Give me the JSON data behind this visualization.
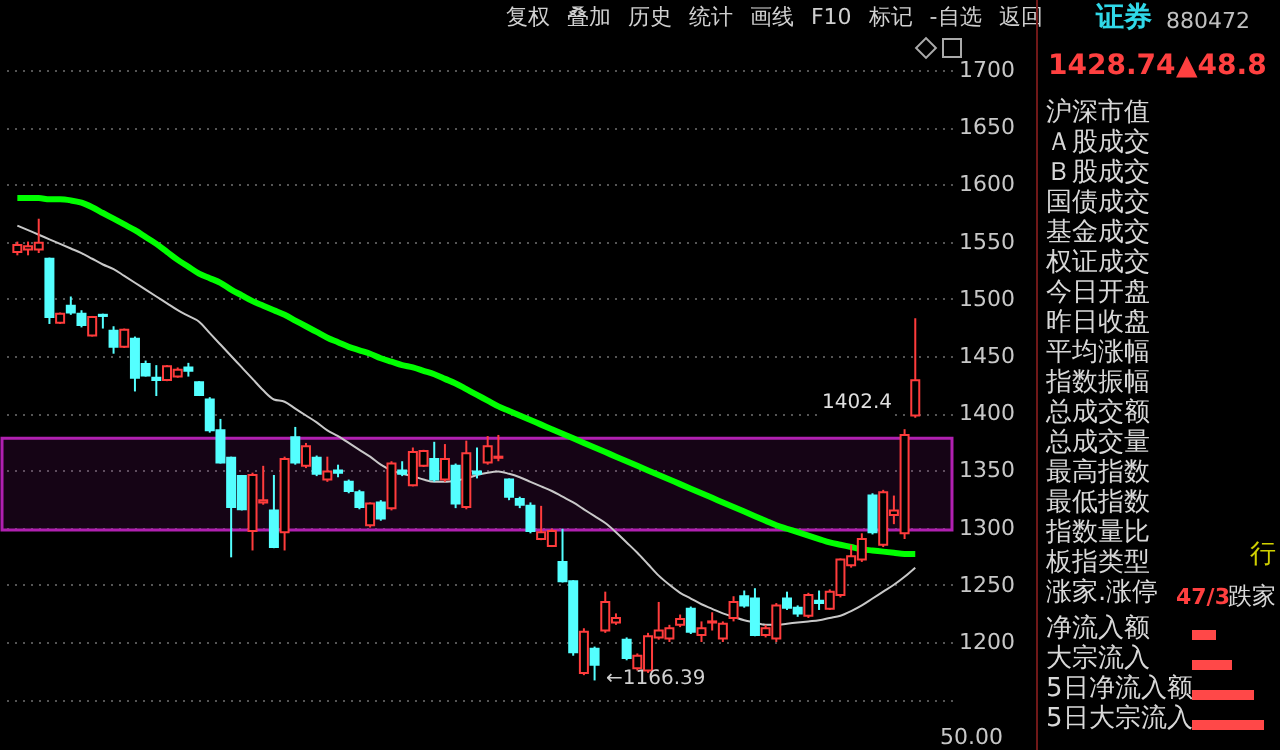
{
  "chart_data": {
    "type": "candlestick",
    "categories": [
      null,
      null,
      null,
      null,
      null,
      null,
      null,
      null,
      null,
      null,
      null,
      null,
      null,
      null,
      null,
      null,
      null,
      null,
      null,
      null,
      null,
      null,
      null,
      null,
      null,
      null,
      null,
      null,
      null,
      null,
      null,
      null,
      null,
      null,
      null,
      null,
      null,
      null,
      null,
      null,
      null,
      null,
      null,
      null,
      null,
      null,
      null,
      null,
      null,
      null,
      null,
      null,
      null,
      null,
      null,
      null,
      null,
      null,
      null,
      null,
      null,
      null,
      null,
      null,
      null,
      null,
      null,
      null,
      null,
      null,
      null,
      null,
      null,
      null,
      null,
      null,
      null,
      null,
      null,
      null,
      null,
      null,
      null,
      null,
      null
    ],
    "ohlc": [
      [
        1541,
        1550,
        1538,
        1547
      ],
      [
        1543,
        1550,
        1538,
        1546
      ],
      [
        1543,
        1570,
        1540,
        1549
      ],
      [
        1535,
        1536,
        1478,
        1484
      ],
      [
        1479,
        1488,
        1478,
        1487
      ],
      [
        1494,
        1502,
        1486,
        1488
      ],
      [
        1487,
        1490,
        1475,
        1477
      ],
      [
        1468,
        1485,
        1467,
        1484
      ],
      [
        1486,
        1487,
        1474,
        1485
      ],
      [
        1472,
        1476,
        1452,
        1458
      ],
      [
        1458,
        1474,
        1457,
        1473
      ],
      [
        1465,
        1467,
        1419,
        1431
      ],
      [
        1443,
        1446,
        1432,
        1433
      ],
      [
        1431,
        1442,
        1415,
        1429
      ],
      [
        1429,
        1442,
        1428,
        1441
      ],
      [
        1432,
        1440,
        1431,
        1438
      ],
      [
        1440,
        1444,
        1432,
        1437
      ],
      [
        1427,
        1428,
        1415,
        1416
      ],
      [
        1412,
        1414,
        1383,
        1385
      ],
      [
        1385,
        1395,
        1356,
        1357
      ],
      [
        1361,
        1362,
        1274,
        1318
      ],
      [
        1345,
        1346,
        1315,
        1316
      ],
      [
        1297,
        1348,
        1280,
        1346
      ],
      [
        1322,
        1354,
        1320,
        1324
      ],
      [
        1315,
        1346,
        1282,
        1283
      ],
      [
        1296,
        1362,
        1280,
        1360
      ],
      [
        1379,
        1388,
        1355,
        1357
      ],
      [
        1354,
        1374,
        1352,
        1371
      ],
      [
        1361,
        1363,
        1345,
        1347
      ],
      [
        1342,
        1362,
        1340,
        1349
      ],
      [
        1350,
        1355,
        1344,
        1348
      ],
      [
        1340,
        1342,
        1330,
        1332
      ],
      [
        1331,
        1333,
        1316,
        1318
      ],
      [
        1302,
        1322,
        1300,
        1321
      ],
      [
        1322,
        1324,
        1306,
        1308
      ],
      [
        1317,
        1358,
        1315,
        1356
      ],
      [
        1350,
        1358,
        1345,
        1347
      ],
      [
        1337,
        1370,
        1336,
        1366
      ],
      [
        1354,
        1368,
        1353,
        1367
      ],
      [
        1360,
        1375,
        1340,
        1342
      ],
      [
        1342,
        1373,
        1340,
        1360
      ],
      [
        1354,
        1356,
        1317,
        1321
      ],
      [
        1318,
        1376,
        1316,
        1365
      ],
      [
        1349,
        1370,
        1343,
        1347
      ],
      [
        1357,
        1380,
        1355,
        1371
      ],
      [
        1361,
        1381,
        1358,
        1362
      ],
      [
        1342,
        1343,
        1324,
        1327
      ],
      [
        1325,
        1327,
        1317,
        1320
      ],
      [
        1319,
        1322,
        1295,
        1297
      ],
      [
        1290,
        1319,
        1289,
        1296
      ],
      [
        1284,
        1299,
        1283,
        1297
      ],
      [
        1270,
        1299,
        1252,
        1253
      ],
      [
        1253,
        1254,
        1188,
        1191
      ],
      [
        1173,
        1212,
        1171,
        1209
      ],
      [
        1194,
        1196,
        1166.39,
        1180
      ],
      [
        1210,
        1244,
        1208,
        1235
      ],
      [
        1217,
        1225,
        1215,
        1221
      ],
      [
        1202,
        1204,
        1184,
        1186
      ],
      [
        1177,
        1190,
        1175,
        1188
      ],
      [
        1175,
        1208,
        1173,
        1205
      ],
      [
        1204,
        1235,
        1202,
        1210
      ],
      [
        1203,
        1215,
        1200,
        1212
      ],
      [
        1215,
        1224,
        1213,
        1220
      ],
      [
        1229,
        1231,
        1207,
        1209
      ],
      [
        1206,
        1218,
        1200,
        1212
      ],
      [
        1217,
        1226,
        1210,
        1218
      ],
      [
        1203,
        1218,
        1200,
        1216
      ],
      [
        1221,
        1240,
        1218,
        1235
      ],
      [
        1240,
        1245,
        1230,
        1232
      ],
      [
        1238,
        1247,
        1205,
        1206
      ],
      [
        1206,
        1215,
        1204,
        1212
      ],
      [
        1203,
        1234,
        1200,
        1232
      ],
      [
        1238,
        1244,
        1228,
        1230
      ],
      [
        1230,
        1232,
        1222,
        1225
      ],
      [
        1223,
        1243,
        1221,
        1241
      ],
      [
        1236,
        1245,
        1228,
        1234
      ],
      [
        1229,
        1246,
        1228,
        1244
      ],
      [
        1241,
        1273,
        1239,
        1272
      ],
      [
        1267,
        1285,
        1265,
        1275
      ],
      [
        1272,
        1295,
        1270,
        1290
      ],
      [
        1328,
        1330,
        1294,
        1296
      ],
      [
        1285,
        1333,
        1283,
        1331
      ],
      [
        1311,
        1328,
        1303,
        1315
      ],
      [
        1295,
        1386,
        1290,
        1381
      ],
      [
        1398,
        1483,
        1396,
        1428.74
      ]
    ],
    "series": [
      {
        "type": "line",
        "color": "#00ff00",
        "values": [
          1588,
          1588,
          1588,
          1587,
          1587,
          1586,
          1584,
          1580,
          1575,
          1570,
          1565,
          1560,
          1554,
          1548,
          1541,
          1534,
          1528,
          1522,
          1518,
          1514,
          1508,
          1503,
          1498,
          1494,
          1490,
          1486,
          1481,
          1476,
          1471,
          1466,
          1462,
          1458,
          1455,
          1452,
          1448,
          1445,
          1442,
          1440,
          1437,
          1434,
          1430,
          1426,
          1421,
          1416,
          1411,
          1406,
          1402,
          1398,
          1394,
          1390,
          1386,
          1382,
          1378,
          1374,
          1370,
          1366,
          1362,
          1358,
          1354,
          1350,
          1346,
          1342,
          1338,
          1334,
          1330,
          1326,
          1322,
          1318,
          1314,
          1310,
          1306,
          1302,
          1299,
          1296,
          1293,
          1290,
          1287,
          1285,
          1283,
          1281,
          1280,
          1279,
          1278,
          1277,
          1277
        ]
      },
      {
        "type": "line",
        "color": "#c8c8c8",
        "values": [
          1564,
          1560,
          1556,
          1552,
          1548,
          1544,
          1540,
          1535,
          1530,
          1526,
          1520,
          1514,
          1508,
          1502,
          1496,
          1490,
          1485,
          1480,
          1470,
          1460,
          1450,
          1440,
          1430,
          1420,
          1412,
          1410,
          1404,
          1398,
          1392,
          1385,
          1380,
          1374,
          1368,
          1362,
          1355,
          1350,
          1347,
          1345,
          1342,
          1340,
          1340,
          1341,
          1343,
          1346,
          1348,
          1349,
          1347,
          1344,
          1340,
          1336,
          1332,
          1327,
          1322,
          1316,
          1310,
          1304,
          1296,
          1287,
          1278,
          1268,
          1258,
          1250,
          1243,
          1238,
          1233,
          1229,
          1225,
          1222,
          1219,
          1217,
          1215,
          1215,
          1216,
          1217,
          1218,
          1219,
          1221,
          1223,
          1227,
          1232,
          1238,
          1244,
          1250,
          1257,
          1265
        ]
      }
    ],
    "bands": [
      {
        "axis": "y",
        "from": 1298,
        "to": 1378,
        "color": "#b020b0"
      }
    ],
    "ylim": [
      1150,
      1700
    ],
    "yticks": [
      {
        "value": 1150,
        "label": null
      },
      1200,
      1250,
      1300,
      1350,
      1400,
      1450,
      1500,
      1550,
      1600,
      1650,
      1700
    ],
    "grid": "y",
    "annotations": [
      "复权 叠加 历史 统计 画线 F10 标记 -自选 返回",
      "证券",
      "880472",
      "1428.74",
      "▲48.8",
      "沪深市值",
      "Ａ股成交",
      "Ｂ股成交",
      "国债成交",
      "基金成交",
      "权证成交",
      "今日开盘",
      "昨日收盘",
      "平均涨幅",
      "指数振幅",
      "总成交额",
      "总成交量",
      "最高指数",
      "最低指数",
      "指数量比",
      "板指类型",
      "涨家.涨停",
      "净流入额",
      "大宗流入",
      "5日净流入额",
      "5日大宗流入",
      "47/3",
      "跌家",
      "行",
      "50.00",
      "←1166.39",
      "1402.4"
    ]
  }
}
